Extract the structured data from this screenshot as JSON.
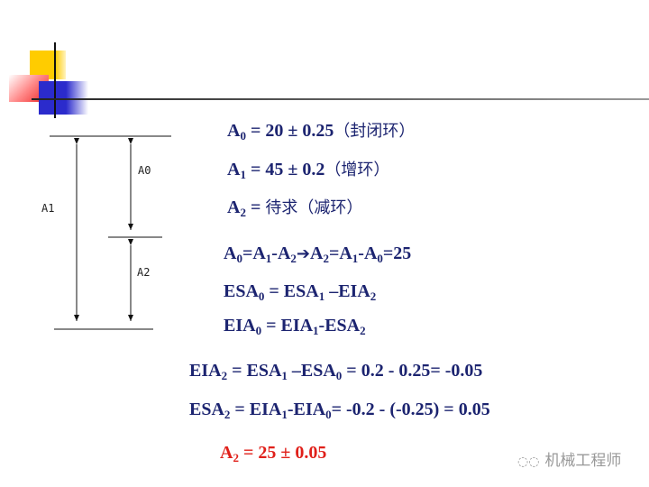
{
  "colors": {
    "text": "#1c2470",
    "result": "#e0201a",
    "deco_yellow": "#ffcc00",
    "deco_red": "#ee2222",
    "deco_blue": "#2b2bcc"
  },
  "diagram": {
    "labels": [
      "A1",
      "A0",
      "A2"
    ]
  },
  "given": [
    {
      "a": "A",
      "s": "0",
      "rest": " = 20 ± 0.25",
      "cn": "（封闭环）"
    },
    {
      "a": "A",
      "s": "1",
      "rest": " = 45 ± 0.2",
      "cn": "（增环）"
    },
    {
      "a": "A",
      "s": "2",
      "rest": " = ",
      "cn": "待求（减环）"
    }
  ],
  "eq1": {
    "p1": "A",
    "s1": "0",
    "p2": "=A",
    "s2": "1",
    "p3": "-A",
    "s3": "2",
    "arrow": "➔",
    "p4": "A",
    "s4": "2",
    "p5": "=A",
    "s5": "1",
    "p6": "-A",
    "s6": "0",
    "p7": "=25"
  },
  "eq2": {
    "p1": "ESA",
    "s1": "0",
    "p2": " = ESA",
    "s2": "1",
    "p3": " –EIA",
    "s3": "2"
  },
  "eq3": {
    "p1": "EIA",
    "s1": "0",
    "p2": " = EIA",
    "s2": "1",
    "p3": "-ESA",
    "s3": "2"
  },
  "eq4": {
    "p1": "EIA",
    "s1": "2",
    "p2": " = ESA",
    "s2": "1",
    "p3": " –ESA",
    "s3": "0",
    "p4": " = 0.2 - 0.25= -0.05"
  },
  "eq5": {
    "p1": "ESA",
    "s1": "2",
    "p2": " = EIA",
    "s2": "1",
    "p3": "-EIA",
    "s3": "0",
    "p4": "= -0.2 - (-0.25) = 0.05"
  },
  "result": {
    "p1": "A",
    "s1": "2",
    "p2": " = 25 ± 0.05"
  },
  "watermark": "机械工程师"
}
